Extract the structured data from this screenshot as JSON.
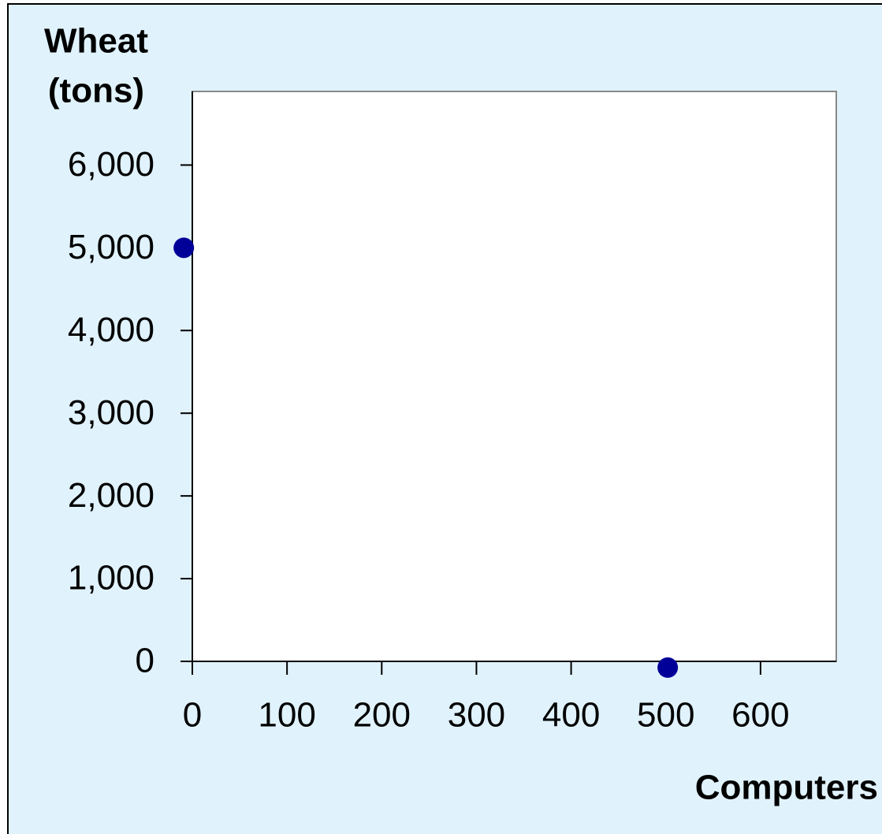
{
  "chart_data": {
    "type": "scatter",
    "y_label": [
      "Wheat",
      "(tons)"
    ],
    "x_label": "Computers",
    "x": [
      -9,
      502
    ],
    "values": [
      5000,
      -75
    ],
    "color": "#000099",
    "xlim": [
      0,
      680
    ],
    "ylim": [
      0,
      6890
    ],
    "xticks": [
      0,
      100,
      200,
      300,
      400,
      500,
      600
    ],
    "yticks": [
      0,
      {
        "value": 1000,
        "label": "1,000"
      },
      {
        "value": 2000,
        "label": "2,000"
      },
      {
        "value": 3000,
        "label": "3,000"
      },
      {
        "value": 4000,
        "label": "4,000"
      },
      {
        "value": 5000,
        "label": "5,000"
      },
      {
        "value": 6000,
        "label": "6,000"
      }
    ],
    "grid": false
  }
}
